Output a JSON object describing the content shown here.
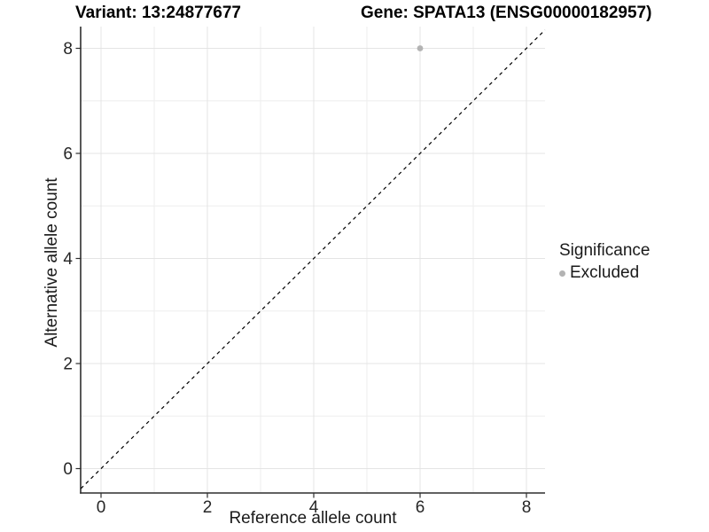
{
  "chart_data": {
    "type": "scatter",
    "title_left": "Variant: 13:24877677",
    "title_right": "Gene: SPATA13 (ENSG00000182957)",
    "xlabel": "Reference allele count",
    "ylabel": "Alternative allele count",
    "x_ticks": [
      0,
      2,
      4,
      6,
      8
    ],
    "y_ticks": [
      0,
      2,
      4,
      6,
      8
    ],
    "x_minor_gridlines": [
      1,
      3,
      5,
      7
    ],
    "y_minor_gridlines": [
      1,
      3,
      5,
      7
    ],
    "xlim": [
      -0.38,
      8.35
    ],
    "ylim": [
      -0.46,
      8.41
    ],
    "grid": "major and minor light-gray gridlines on white panel",
    "axis_lines": "left and bottom only",
    "series": [
      {
        "name": "Excluded",
        "marker": "circle",
        "color": "#b3b3b3",
        "points": [
          [
            6,
            8
          ]
        ]
      }
    ],
    "reference_line": {
      "kind": "identity",
      "equation": "y = x",
      "style": "dashed",
      "color": "#000000"
    },
    "legend": {
      "position": "right-middle",
      "title": "Significance",
      "entries": [
        {
          "label": "Excluded",
          "marker_color": "#b3b3b3"
        }
      ]
    },
    "colors": {
      "point_gray": "#b3b3b3",
      "grid_major": "#e4e4e4",
      "grid_minor": "#eeeeee",
      "axis_line": "#2e2e2e"
    }
  }
}
